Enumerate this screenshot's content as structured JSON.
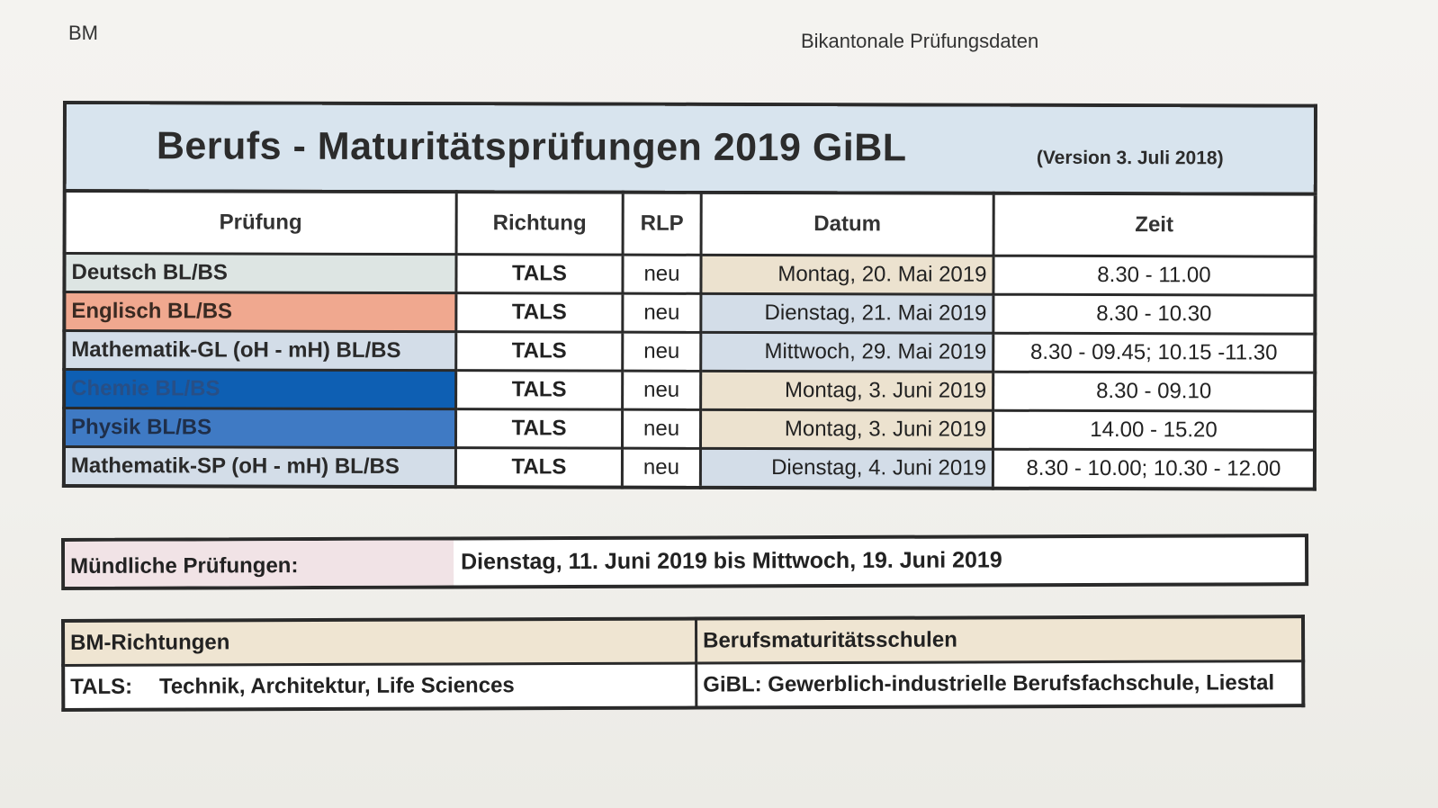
{
  "header": {
    "left": "BM",
    "right": "Bikantonale Prüfungsdaten"
  },
  "title": "Berufs - Maturitätsprüfungen  2019   GiBL",
  "version": "(Version 3. Juli 2018)",
  "columns": [
    "Prüfung",
    "Richtung",
    "RLP",
    "Datum",
    "Zeit"
  ],
  "rows": [
    {
      "pruefung": "Deutsch BL/BS",
      "richtung": "TALS",
      "rlp": "neu",
      "datum": "Montag, 20. Mai 2019",
      "zeit": "8.30 - 11.00",
      "color": "#dde5e3",
      "text_color": "#2a2a2a",
      "date_color": "#ece2cf"
    },
    {
      "pruefung": "Englisch BL/BS",
      "richtung": "TALS",
      "rlp": "neu",
      "datum": "Dienstag, 21. Mai 2019",
      "zeit": "8.30 - 10.30",
      "color": "#f0a88f",
      "text_color": "#3a2a22",
      "date_color": "#d3dde8"
    },
    {
      "pruefung": "Mathematik-GL (oH - mH) BL/BS",
      "richtung": "TALS",
      "rlp": "neu",
      "datum": "Mittwoch, 29. Mai 2019",
      "zeit": "8.30 - 09.45; 10.15 -11.30",
      "color": "#d3dde8",
      "text_color": "#2a2a2a",
      "date_color": "#d3dde8"
    },
    {
      "pruefung": "Chemie BL/BS",
      "richtung": "TALS",
      "rlp": "neu",
      "datum": "Montag, 3. Juni 2019",
      "zeit": "8.30 - 09.10",
      "color": "#0e5fb3",
      "text_color": "#284f86",
      "date_color": "#ece2cf"
    },
    {
      "pruefung": "Physik BL/BS",
      "richtung": "TALS",
      "rlp": "neu",
      "datum": "Montag, 3. Juni 2019",
      "zeit": "14.00 - 15.20",
      "color": "#3f7ac4",
      "text_color": "#1f2f4a",
      "date_color": "#ece2cf"
    },
    {
      "pruefung": "Mathematik-SP  (oH - mH) BL/BS",
      "richtung": "TALS",
      "rlp": "neu",
      "datum": "Dienstag, 4. Juni 2019",
      "zeit": "8.30 - 10.00; 10.30 - 12.00",
      "color": "#d3dde8",
      "text_color": "#2a2a2a",
      "date_color": "#d3dde8"
    }
  ],
  "oral": {
    "label": "Mündliche Prüfungen:",
    "value": "Dienstag, 11. Juni 2019 bis Mittwoch, 19. Juni 2019"
  },
  "info": {
    "left_header": "BM-Richtungen",
    "right_header": "Berufsmaturitätsschulen",
    "left_label": "TALS:",
    "left_value": "Technik, Architektur, Life Sciences",
    "right_label": "GiBL:",
    "right_value": "Gewerblich-industrielle Berufsfachschule, Liestal"
  }
}
